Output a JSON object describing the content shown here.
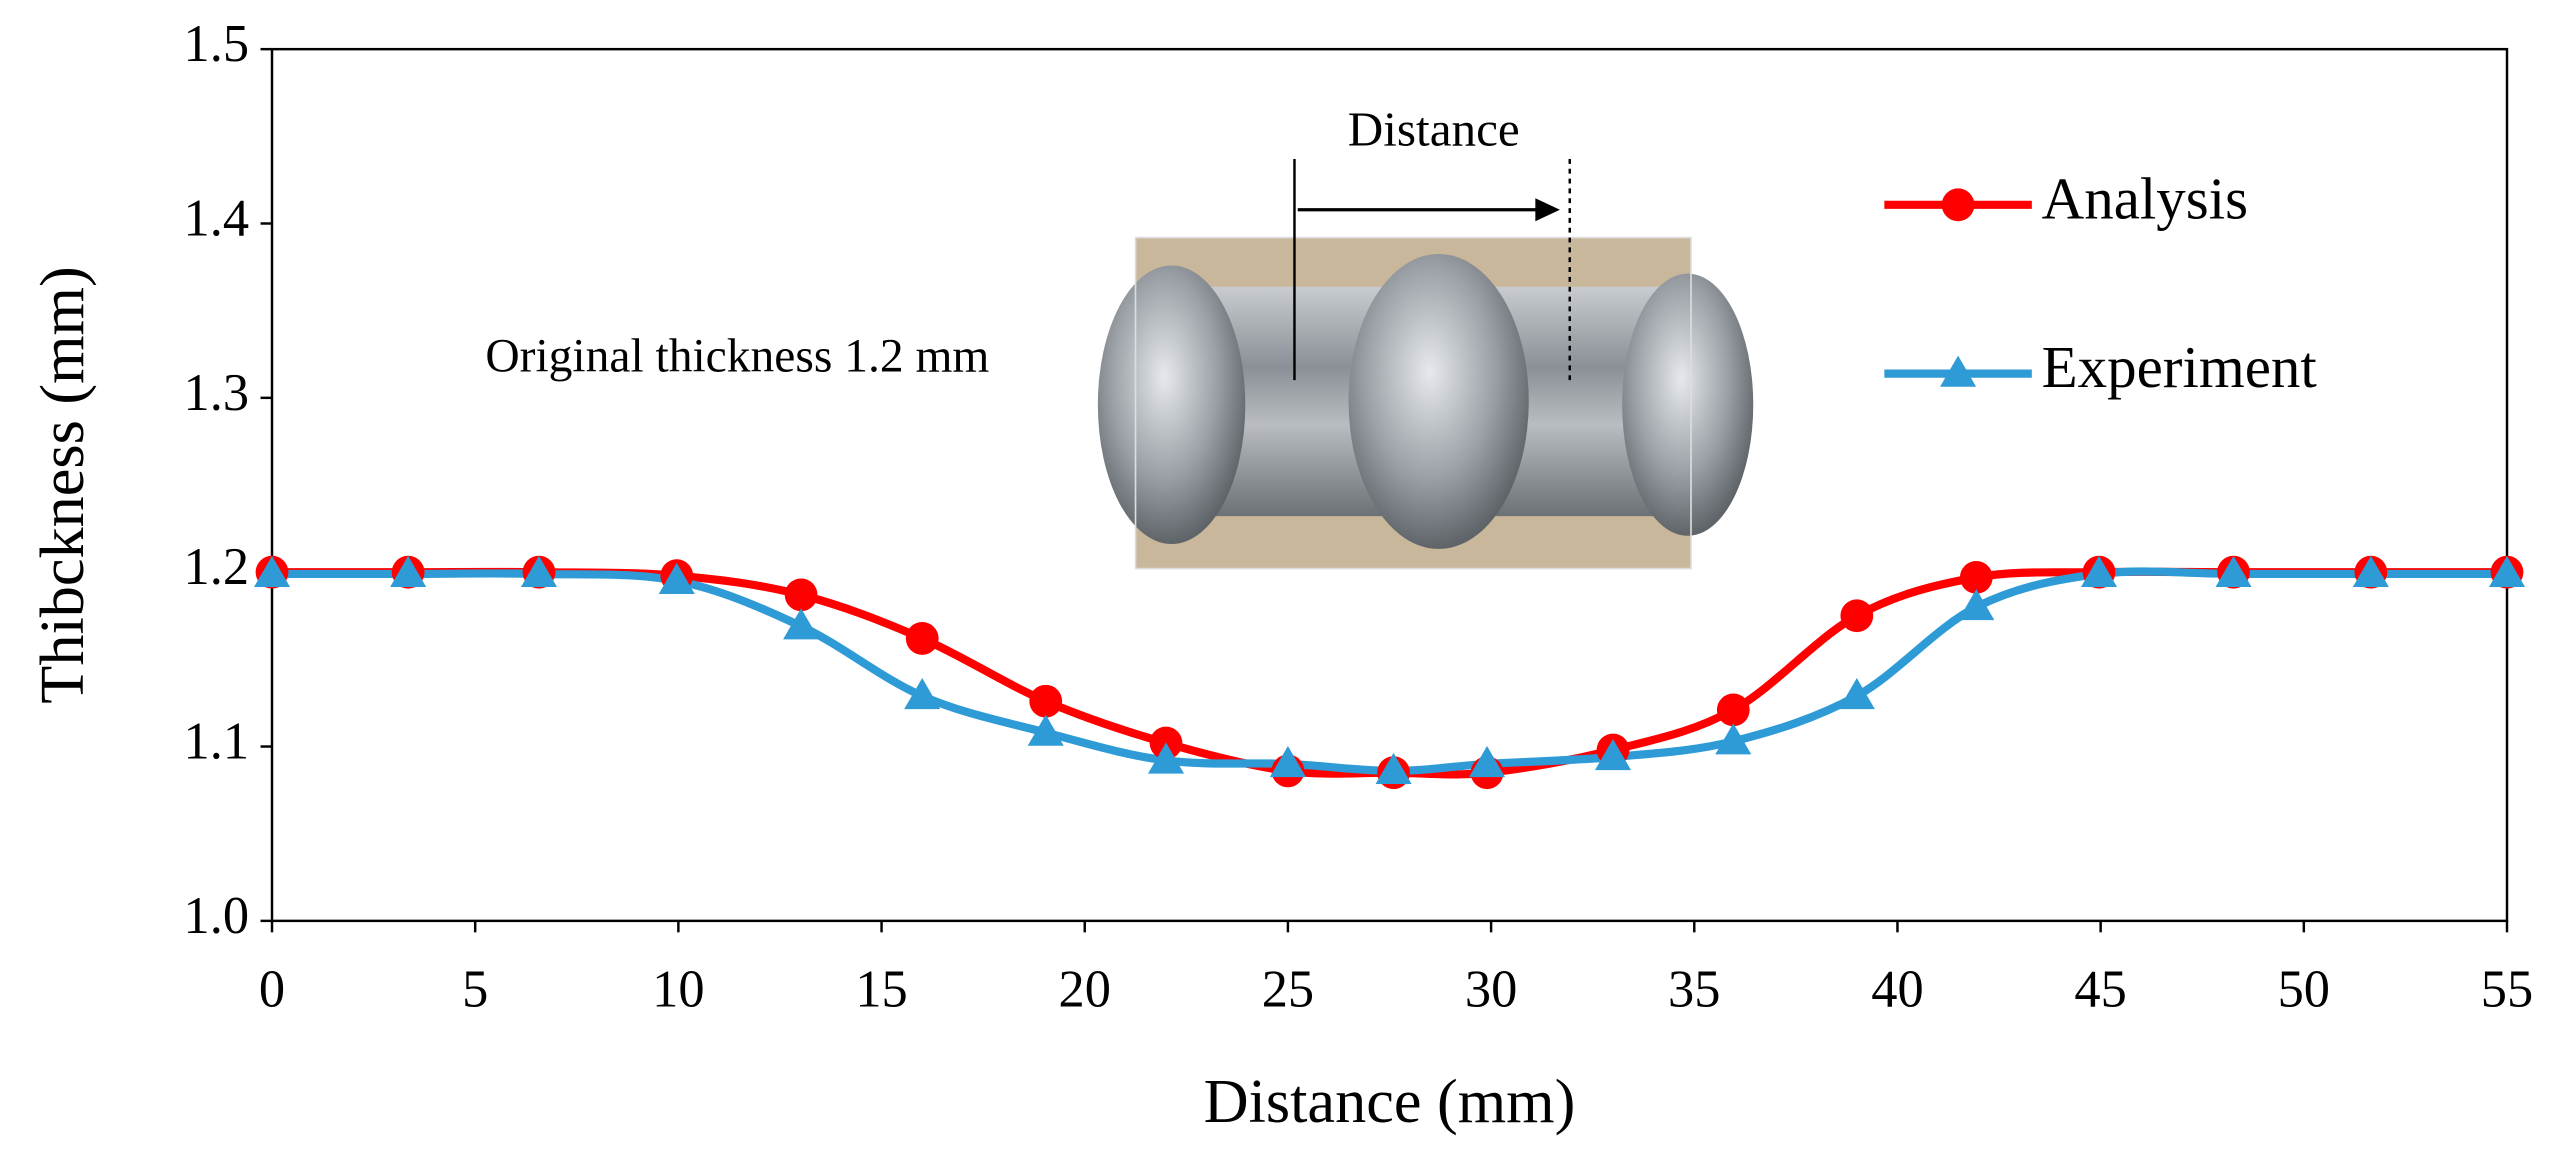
{
  "chart_data": {
    "type": "line",
    "x_label": "Distance (mm)",
    "y_label": "Thibckness (mm)",
    "annotations": [
      "Original thickness 1.2 mm",
      "Distance"
    ],
    "x": [
      0,
      3.35,
      6.57,
      9.96,
      13.02,
      16.0,
      19.04,
      22.0,
      25.0,
      27.6,
      29.9,
      33.0,
      35.96,
      39.0,
      41.94,
      44.96,
      48.27,
      51.65,
      55
    ],
    "series": [
      {
        "name": "Analysis",
        "color": "#ff0000",
        "marker": "circle",
        "values": [
          1.2,
          1.2,
          1.2,
          1.198,
          1.187,
          1.162,
          1.126,
          1.102,
          1.086,
          1.085,
          1.085,
          1.098,
          1.121,
          1.175,
          1.197,
          1.2,
          1.2,
          1.2,
          1.2
        ]
      },
      {
        "name": "Experiment",
        "color": "#2e9bd6",
        "marker": "triangle",
        "values": [
          1.199,
          1.199,
          1.199,
          1.195,
          1.169,
          1.129,
          1.108,
          1.092,
          1.09,
          1.086,
          1.09,
          1.094,
          1.103,
          1.129,
          1.18,
          1.199,
          1.199,
          1.199,
          1.199
        ]
      }
    ],
    "xlim": [
      0,
      55
    ],
    "xticks": [
      0,
      5,
      10,
      15,
      20,
      25,
      30,
      35,
      40,
      45,
      50,
      55
    ],
    "ylim": [
      1.0,
      1.5
    ],
    "yticks": [
      {
        "value": 1,
        "label": "1.0"
      },
      1.1,
      1.2,
      1.3,
      1.4,
      {
        "value": 1.5,
        "label": "1.5"
      }
    ],
    "legend": "upper right",
    "smooth": true
  }
}
